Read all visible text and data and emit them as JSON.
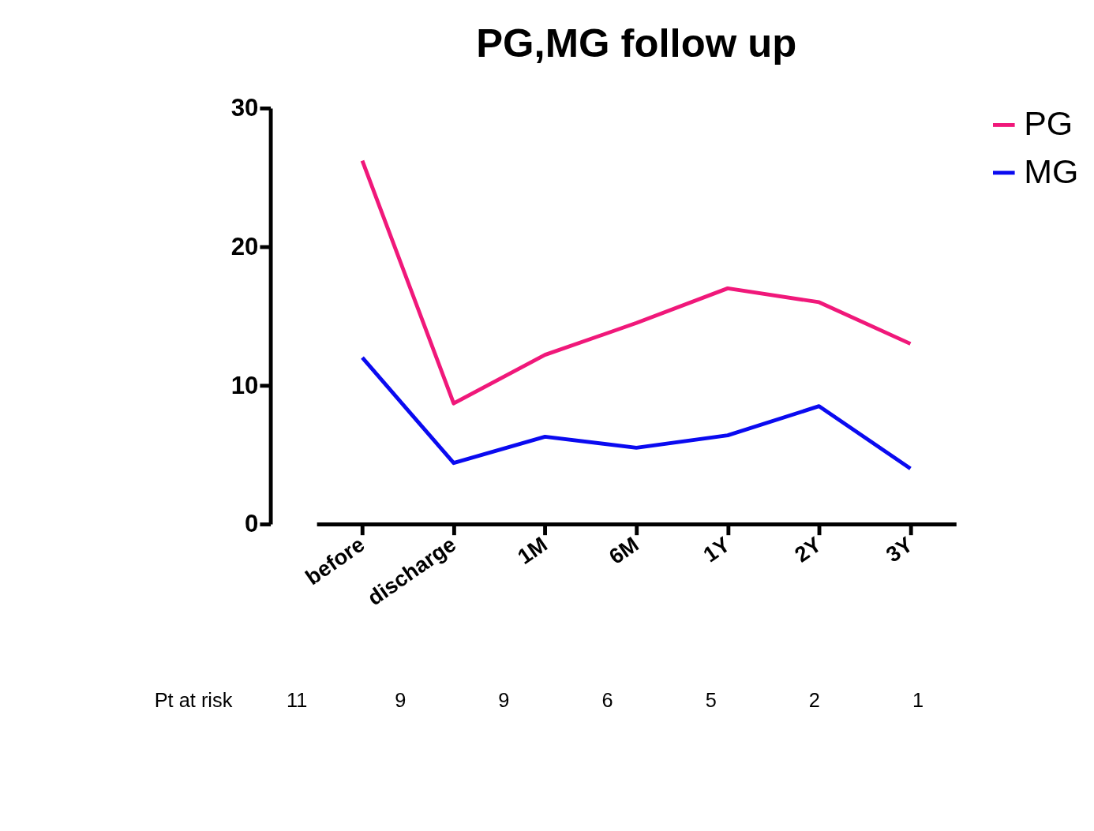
{
  "chart_data": {
    "type": "line",
    "title": "PG,MG follow up",
    "categories": [
      "before",
      "discharge",
      "1M",
      "6M",
      "1Y",
      "2Y",
      "3Y"
    ],
    "series": [
      {
        "name": "PG",
        "color": "#f0187a",
        "values": [
          26.2,
          8.7,
          12.2,
          14.5,
          17.0,
          16.0,
          13.0
        ]
      },
      {
        "name": "MG",
        "color": "#0a0af0",
        "values": [
          12.0,
          4.4,
          6.3,
          5.5,
          6.4,
          8.5,
          4.0
        ]
      }
    ],
    "ylim": [
      0,
      30
    ],
    "yticks": [
      0,
      10,
      20,
      30
    ],
    "grid": false,
    "legend": "top right",
    "marker": "none",
    "line_style": "solid",
    "annotations": [
      "Pt at risk",
      "11",
      "9",
      "9",
      "6",
      "5",
      "2",
      "1"
    ]
  }
}
